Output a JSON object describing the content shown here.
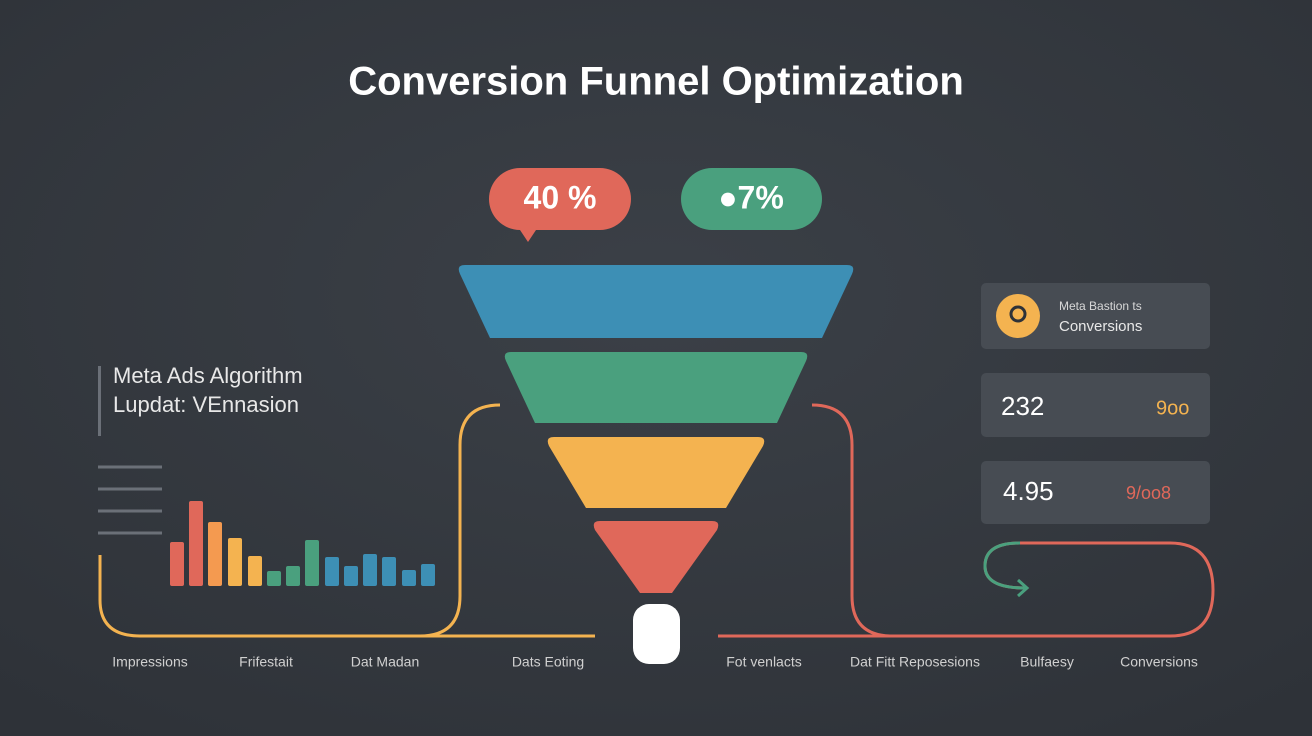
{
  "header": {
    "title": "Conversion Funnel Optimization"
  },
  "badges": [
    "40 %",
    "●7%"
  ],
  "note": {
    "lines": [
      "Meta Ads Algorithm",
      "Lupdat: VEnnasion"
    ]
  },
  "cards": [
    {
      "caption": "Meta Bastion ts",
      "label": "Conversions"
    },
    {
      "value": "232",
      "extra": "9oo"
    },
    {
      "value": "4.95",
      "extra": "9/oo8"
    }
  ],
  "steps": [
    "Impressions",
    "Frifestait",
    "Dat Madan",
    "Dats Eoting",
    "Fot venlacts",
    "Dat Fitt Reposesions",
    "Bulfaesy",
    "Conversions"
  ]
}
